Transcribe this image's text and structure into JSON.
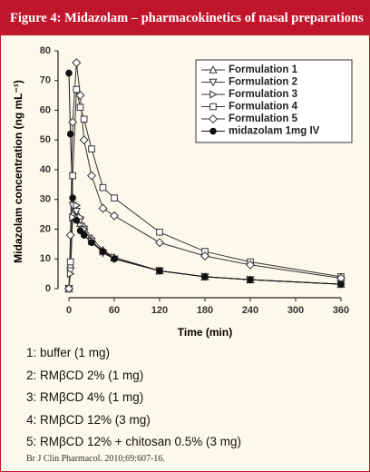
{
  "header": {
    "title": "Figure 4: Midazolam – pharmacokinetics of nasal preparations"
  },
  "chart_data": {
    "type": "line",
    "x_label": "Time (min)",
    "y_label": "Midazolam concentration (ng mL⁻¹)",
    "x": [
      0,
      2,
      5,
      10,
      15,
      20,
      30,
      45,
      60,
      120,
      180,
      240,
      360
    ],
    "xlim": [
      0,
      360
    ],
    "xticks": [
      0,
      60,
      120,
      180,
      240,
      300,
      360
    ],
    "ylim": [
      0,
      80
    ],
    "yticks": [
      0,
      10,
      20,
      30,
      40,
      50,
      60,
      70,
      80
    ],
    "legend_position": "upper right",
    "series": [
      {
        "name": "Formulation 1",
        "color": "#333333",
        "marker": "triangle-up",
        "values": [
          0,
          8,
          25,
          24,
          22,
          21,
          17,
          13,
          10.5,
          6,
          4,
          3,
          1.5
        ]
      },
      {
        "name": "Formulation 2",
        "color": "#333333",
        "marker": "triangle-down",
        "values": [
          0,
          6,
          28,
          26,
          23,
          20,
          16,
          12,
          10,
          6,
          4,
          3,
          1.5
        ]
      },
      {
        "name": "Formulation 3",
        "color": "#333333",
        "marker": "triangle-right",
        "values": [
          0,
          5,
          24,
          28,
          24,
          20,
          16,
          12.5,
          10.5,
          6,
          4,
          3,
          1.5
        ]
      },
      {
        "name": "Formulation 4",
        "color": "#333333",
        "marker": "square",
        "values": [
          0,
          9,
          38,
          67,
          61,
          57,
          47,
          34,
          30.5,
          19,
          12.5,
          9,
          4
        ]
      },
      {
        "name": "Formulation 5",
        "color": "#333333",
        "marker": "diamond",
        "values": [
          0,
          18,
          56,
          76,
          65,
          50,
          38,
          27,
          24.5,
          15.5,
          11,
          8,
          3.5
        ]
      },
      {
        "name": "midazolam 1mg IV",
        "color": "#111111",
        "marker": "filled-circle",
        "values": [
          72.5,
          52,
          30.5,
          23,
          19.5,
          18,
          15.5,
          12.5,
          10,
          6,
          4,
          3,
          1.5
        ]
      }
    ]
  },
  "notes": [
    "1: buffer (1 mg)",
    "2: RMβCD 2% (1 mg)",
    "3: RMβCD 4% (1 mg)",
    "4: RMβCD 12% (3 mg)",
    "5: RMβCD 12% + chitosan 0.5% (3 mg)"
  ],
  "citation": "Br J Clin Pharmacol. 2010;69:607-16."
}
